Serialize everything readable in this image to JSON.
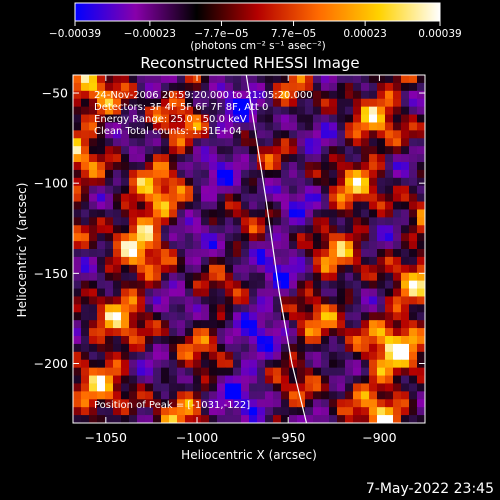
{
  "chart_data": {
    "type": "heatmap",
    "title": "Reconstructed RHESSI Image",
    "xlabel": "Heliocentric X (arcsec)",
    "ylabel": "Heliocentric Y (arcsec)",
    "xlim": [
      -1068,
      -875
    ],
    "ylim": [
      -233,
      -40
    ],
    "xticks": [
      -1050,
      -1000,
      -950,
      -900
    ],
    "xtick_labels": [
      "−1050",
      "−1000",
      "−950",
      "−900"
    ],
    "yticks": [
      -50,
      -100,
      -150,
      -200
    ],
    "ytick_labels": [
      "−50",
      "−100",
      "−150",
      "−200"
    ],
    "colorbar": {
      "tick_labels": [
        "−0.00039",
        "−0.00023",
        "−7.7e−05",
        "7.7e−05",
        "0.00023",
        "0.00039"
      ],
      "label": "(photons cm⁻² s⁻¹ asec⁻²)",
      "range": [
        -0.00039,
        0.00039
      ],
      "colors": [
        "#0000ff",
        "#8800aa",
        "#000000",
        "#b40000",
        "#ff6a00",
        "#ffd200",
        "#ffffff"
      ]
    },
    "annotations": [
      "24-Nov-2006 20:59:20.000 to 21:05:20.000",
      "Detectors: 3F 4F 5F 6F 7F 8F, Att 0",
      "Energy Range: 25.0 - 50.0 keV",
      "Clean     Total counts: 1.31E+04"
    ],
    "peak_label": "Position of Peak = [-1031,-122]",
    "limb_curve": [
      [
        -973,
        -40
      ],
      [
        -962,
        -110
      ],
      [
        -955,
        -160
      ],
      [
        -948,
        -200
      ],
      [
        -940,
        -233
      ]
    ],
    "peak": [
      -1031,
      -122
    ]
  },
  "footer": {
    "date": "7-May-2022 23:45"
  }
}
